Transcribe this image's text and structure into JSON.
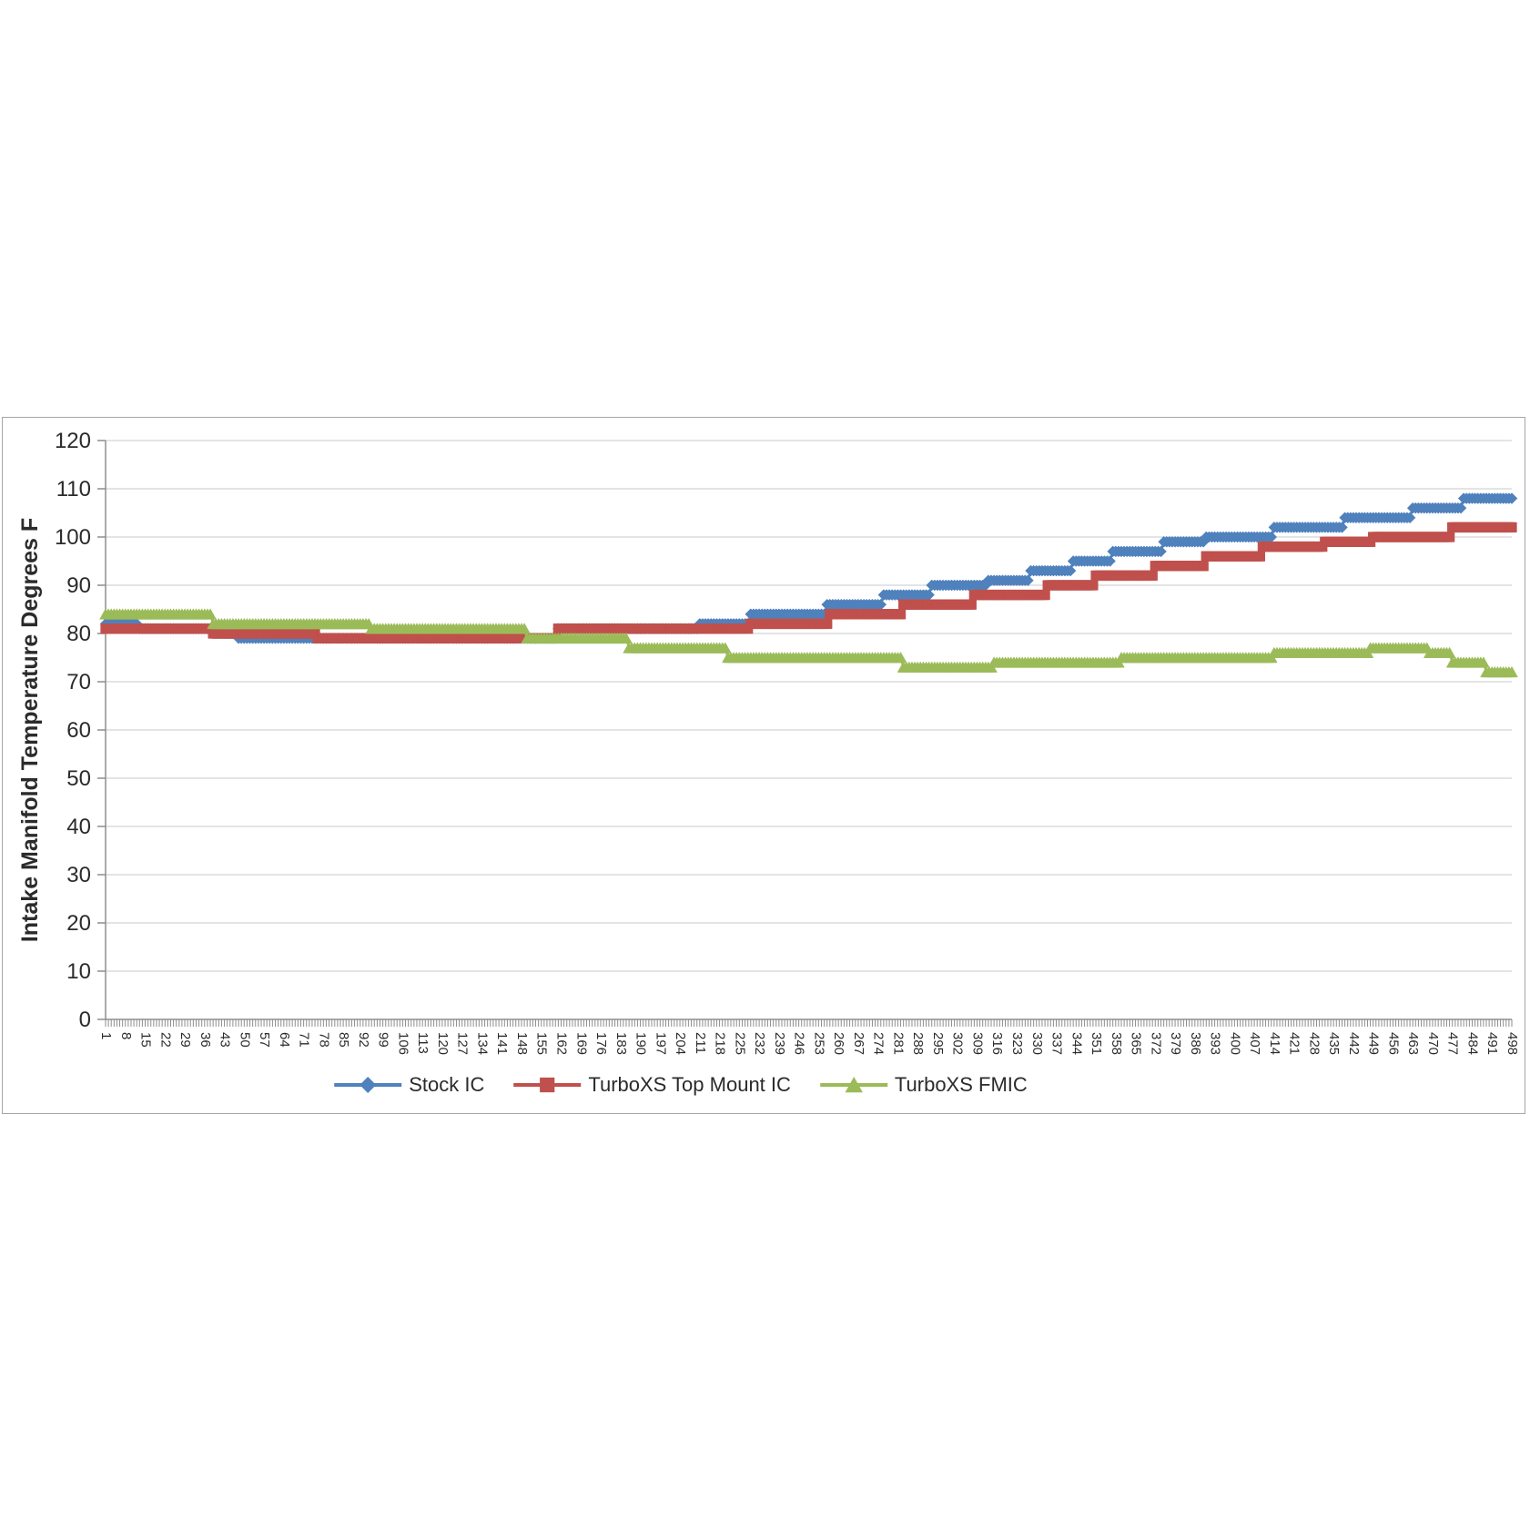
{
  "chart_data": {
    "type": "line",
    "title": "",
    "y_axis_title": "Intake Manifold Temperature Degrees F",
    "ylim": [
      0,
      120
    ],
    "y_ticks": [
      0,
      10,
      20,
      30,
      40,
      50,
      60,
      70,
      80,
      90,
      100,
      110,
      120
    ],
    "x_range": [
      1,
      498
    ],
    "x_label_step": 7,
    "x_tick_labels": [
      "1",
      "8",
      "15",
      "22",
      "29",
      "36",
      "43",
      "50",
      "57",
      "64",
      "71",
      "78",
      "85",
      "92",
      "99",
      "106",
      "113",
      "120",
      "127",
      "134",
      "141",
      "148",
      "155",
      "162",
      "169",
      "176",
      "183",
      "190",
      "197",
      "204",
      "211",
      "218",
      "225",
      "232",
      "239",
      "246",
      "253",
      "260",
      "267",
      "274",
      "281",
      "288",
      "295",
      "302",
      "309",
      "316",
      "323",
      "330",
      "337",
      "344",
      "351",
      "358",
      "365",
      "372",
      "379",
      "386",
      "393",
      "400",
      "407",
      "414",
      "421",
      "428",
      "435",
      "442",
      "449",
      "456",
      "463",
      "470",
      "477",
      "484",
      "491",
      "498"
    ],
    "grid": "horizontal",
    "legend_position": "bottom",
    "colors": {
      "gridline": "#c9c9c9",
      "axis": "#8e8e8e",
      "tick": "#8e8e8e",
      "text": "#2b2b2b",
      "frame": "#a6a6a6",
      "background": "#ffffff"
    },
    "series": [
      {
        "name": "Stock IC",
        "color": "#4F81BD",
        "marker": "diamond",
        "runs_format": "[first_point, last_point, temperature_F]",
        "runs": [
          [
            1,
            12,
            82
          ],
          [
            13,
            38,
            81
          ],
          [
            39,
            47,
            80
          ],
          [
            48,
            160,
            79
          ],
          [
            161,
            210,
            81
          ],
          [
            211,
            228,
            82
          ],
          [
            229,
            255,
            84
          ],
          [
            256,
            275,
            86
          ],
          [
            276,
            292,
            88
          ],
          [
            293,
            312,
            90
          ],
          [
            313,
            327,
            91
          ],
          [
            328,
            342,
            93
          ],
          [
            343,
            356,
            95
          ],
          [
            357,
            374,
            97
          ],
          [
            375,
            389,
            99
          ],
          [
            390,
            413,
            100
          ],
          [
            414,
            438,
            102
          ],
          [
            439,
            462,
            104
          ],
          [
            463,
            480,
            106
          ],
          [
            481,
            498,
            108
          ]
        ]
      },
      {
        "name": "TurboXS Top Mount IC",
        "color": "#C0504D",
        "marker": "square",
        "runs_format": "[first_point, last_point, temperature_F]",
        "runs": [
          [
            1,
            38,
            81
          ],
          [
            39,
            75,
            80
          ],
          [
            76,
            160,
            79
          ],
          [
            161,
            228,
            81
          ],
          [
            229,
            256,
            82
          ],
          [
            257,
            282,
            84
          ],
          [
            283,
            307,
            86
          ],
          [
            308,
            333,
            88
          ],
          [
            334,
            350,
            90
          ],
          [
            351,
            371,
            92
          ],
          [
            372,
            389,
            94
          ],
          [
            390,
            409,
            96
          ],
          [
            410,
            431,
            98
          ],
          [
            432,
            448,
            99
          ],
          [
            449,
            476,
            100
          ],
          [
            477,
            498,
            102
          ]
        ]
      },
      {
        "name": "TurboXS FMIC",
        "color": "#9BBB59",
        "marker": "triangle",
        "runs_format": "[first_point, last_point, temperature_F]",
        "runs": [
          [
            1,
            38,
            84
          ],
          [
            39,
            94,
            82
          ],
          [
            95,
            149,
            81
          ],
          [
            150,
            185,
            79
          ],
          [
            186,
            220,
            77
          ],
          [
            221,
            282,
            75
          ],
          [
            283,
            314,
            73
          ],
          [
            315,
            359,
            74
          ],
          [
            360,
            413,
            75
          ],
          [
            414,
            447,
            76
          ],
          [
            448,
            468,
            77
          ],
          [
            469,
            476,
            76
          ],
          [
            477,
            488,
            74
          ],
          [
            489,
            498,
            72
          ]
        ]
      }
    ]
  }
}
